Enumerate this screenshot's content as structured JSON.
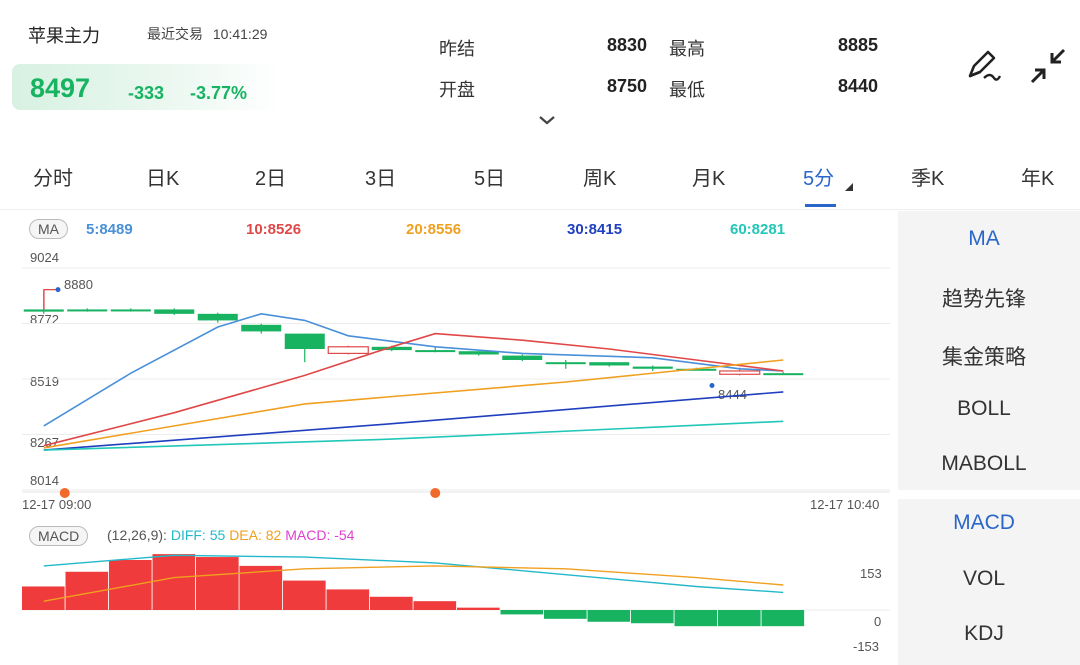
{
  "header": {
    "symbol": "苹果主力",
    "recent_label": "最近交易",
    "time": "10:41:29",
    "price": "8497",
    "change": "-333",
    "change_pct": "-3.77%"
  },
  "stats": {
    "prev_settle_label": "昨结",
    "prev_settle": "8830",
    "high_label": "最高",
    "high": "8885",
    "open_label": "开盘",
    "open": "8750",
    "low_label": "最低",
    "low": "8440"
  },
  "tabs": [
    {
      "label": "分时"
    },
    {
      "label": "日K"
    },
    {
      "label": "2日"
    },
    {
      "label": "3日"
    },
    {
      "label": "5日"
    },
    {
      "label": "周K"
    },
    {
      "label": "月K"
    },
    {
      "label": "5分",
      "active": true
    },
    {
      "label": "季K"
    },
    {
      "label": "年K"
    }
  ],
  "panel": {
    "main": [
      "MA",
      "趋势先锋",
      "集金策略",
      "BOLL",
      "MABOLL"
    ],
    "sub": [
      "MACD",
      "VOL",
      "KDJ"
    ]
  },
  "ma_legend": {
    "tag": "MA",
    "ma5": "5:8489",
    "ma10": "10:8526",
    "ma20": "20:8556",
    "ma30": "30:8415",
    "ma60": "60:8281",
    "colors": {
      "ma5": "#4a90d9",
      "ma10": "#e04848",
      "ma20": "#f0a020",
      "ma30": "#1f3fbf",
      "ma60": "#22c7b8"
    }
  },
  "macd_legend": {
    "tag": "MACD",
    "params": "(12,26,9):",
    "diff": "DIFF: 55",
    "dea": "DEA: 82",
    "macd": "MACD: -54"
  },
  "chart_data": {
    "type": "candlestick",
    "y_ticks": [
      "9024",
      "8772",
      "8519",
      "8267",
      "8014"
    ],
    "ylim": [
      8014,
      9024
    ],
    "x_start": "12-17 09:00",
    "x_end": "12-17 10:40",
    "max_marker": "8880",
    "min_marker": "8444",
    "candles": [
      {
        "o": 8790,
        "c": 8780,
        "h": 8880,
        "l": 8770
      },
      {
        "o": 8790,
        "c": 8790,
        "h": 8795,
        "l": 8780
      },
      {
        "o": 8790,
        "c": 8785,
        "h": 8795,
        "l": 8780
      },
      {
        "o": 8790,
        "c": 8770,
        "h": 8795,
        "l": 8765
      },
      {
        "o": 8770,
        "c": 8740,
        "h": 8775,
        "l": 8730
      },
      {
        "o": 8720,
        "c": 8690,
        "h": 8725,
        "l": 8680
      },
      {
        "o": 8680,
        "c": 8610,
        "h": 8680,
        "l": 8550
      },
      {
        "o": 8590,
        "c": 8620,
        "h": 8625,
        "l": 8585
      },
      {
        "o": 8620,
        "c": 8605,
        "h": 8625,
        "l": 8600
      },
      {
        "o": 8605,
        "c": 8605,
        "h": 8620,
        "l": 8595
      },
      {
        "o": 8600,
        "c": 8585,
        "h": 8600,
        "l": 8580
      },
      {
        "o": 8580,
        "c": 8560,
        "h": 8585,
        "l": 8555
      },
      {
        "o": 8550,
        "c": 8550,
        "h": 8560,
        "l": 8520
      },
      {
        "o": 8550,
        "c": 8535,
        "h": 8550,
        "l": 8530
      },
      {
        "o": 8530,
        "c": 8520,
        "h": 8535,
        "l": 8510
      },
      {
        "o": 8520,
        "c": 8520,
        "h": 8525,
        "l": 8515
      },
      {
        "o": 8495,
        "c": 8510,
        "h": 8525,
        "l": 8490
      },
      {
        "o": 8500,
        "c": 8500,
        "h": 8505,
        "l": 8495
      }
    ],
    "ma_lines": [
      {
        "name": "MA5",
        "color": "#4a90d9",
        "points": [
          [
            0,
            8260
          ],
          [
            2,
            8500
          ],
          [
            4,
            8710
          ],
          [
            5,
            8770
          ],
          [
            6,
            8740
          ],
          [
            7,
            8670
          ],
          [
            9,
            8620
          ],
          [
            11,
            8590
          ],
          [
            14,
            8570
          ],
          [
            16,
            8520
          ],
          [
            17,
            8510
          ]
        ]
      },
      {
        "name": "MA10",
        "color": "#e04848",
        "points": [
          [
            0,
            8170
          ],
          [
            3,
            8320
          ],
          [
            6,
            8490
          ],
          [
            8,
            8620
          ],
          [
            9,
            8680
          ],
          [
            11,
            8650
          ],
          [
            13,
            8610
          ],
          [
            15,
            8560
          ],
          [
            17,
            8510
          ]
        ]
      },
      {
        "name": "MA20",
        "color": "#f0a020",
        "points": [
          [
            0,
            8160
          ],
          [
            6,
            8360
          ],
          [
            12,
            8460
          ],
          [
            17,
            8560
          ]
        ]
      },
      {
        "name": "MA30",
        "color": "#1f3fbf",
        "points": [
          [
            0,
            8150
          ],
          [
            8,
            8270
          ],
          [
            17,
            8415
          ]
        ]
      },
      {
        "name": "MA60",
        "color": "#22c7b8",
        "points": [
          [
            0,
            8150
          ],
          [
            8,
            8200
          ],
          [
            17,
            8281
          ]
        ]
      }
    ],
    "markers": [
      0,
      9
    ],
    "macd": {
      "y_ticks": [
        "153",
        "0",
        "-153"
      ],
      "ylim": [
        -153,
        153
      ],
      "bars": [
        80,
        130,
        170,
        190,
        180,
        150,
        100,
        70,
        45,
        30,
        8,
        -15,
        -30,
        -40,
        -45,
        -55,
        -55,
        -55
      ],
      "diff": [
        [
          0,
          150
        ],
        [
          3,
          186
        ],
        [
          6,
          180
        ],
        [
          9,
          160
        ],
        [
          12,
          120
        ],
        [
          15,
          80
        ],
        [
          17,
          60
        ]
      ],
      "dea": [
        [
          0,
          30
        ],
        [
          3,
          110
        ],
        [
          6,
          140
        ],
        [
          9,
          150
        ],
        [
          12,
          140
        ],
        [
          15,
          110
        ],
        [
          17,
          85
        ]
      ]
    }
  }
}
